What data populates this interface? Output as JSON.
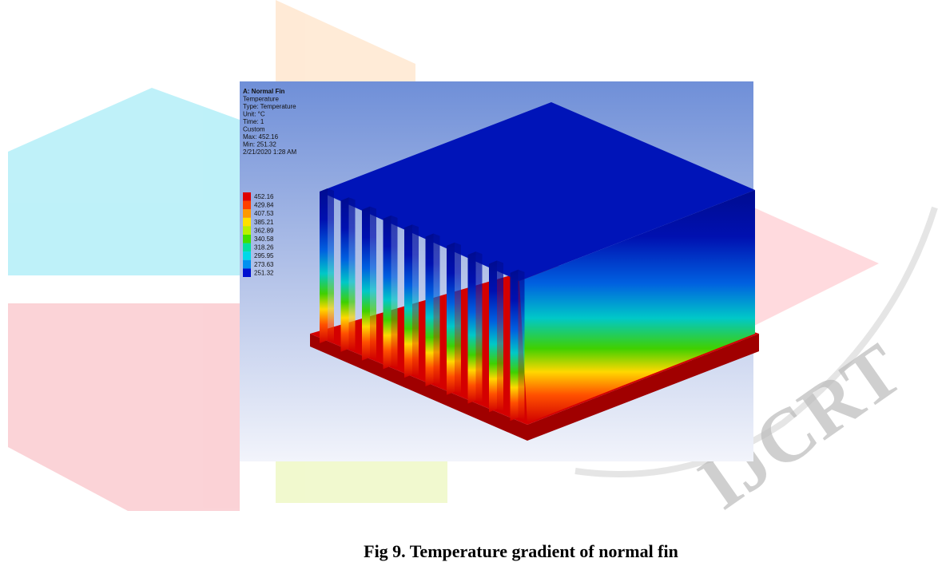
{
  "figure": {
    "info": [
      "A: Normal Fin",
      "Temperature",
      "Type: Temperature",
      "Unit: °C",
      "Time: 1",
      "Custom",
      "Max: 452.16",
      "Min: 251.32",
      "2/21/2020 1:28 AM"
    ],
    "legend": [
      {
        "label": "452.16",
        "color": "#e00000"
      },
      {
        "label": "429.84",
        "color": "#ff4000"
      },
      {
        "label": "407.53",
        "color": "#ff9900"
      },
      {
        "label": "385.21",
        "color": "#ffe000"
      },
      {
        "label": "362.89",
        "color": "#b8f000"
      },
      {
        "label": "340.58",
        "color": "#40e000"
      },
      {
        "label": "318.26",
        "color": "#00e0a0"
      },
      {
        "label": "295.95",
        "color": "#00d8e8"
      },
      {
        "label": "273.63",
        "color": "#0090f0"
      },
      {
        "label": "251.32",
        "color": "#0010d0"
      }
    ]
  },
  "caption": "Fig 9. Temperature gradient of normal fin",
  "watermark": "IJCRT"
}
